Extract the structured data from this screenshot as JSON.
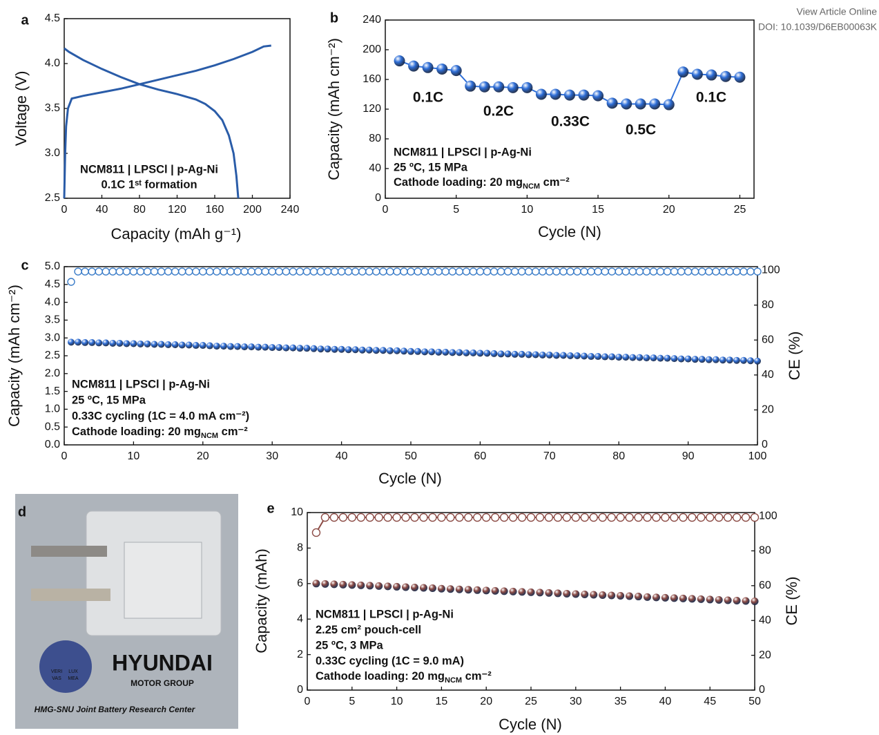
{
  "header": {
    "line1": "View Article Online",
    "line2": "DOI: 10.1039/D6EB00063K"
  },
  "photo": {
    "panel": "d",
    "logo_title": "HYUNDAI",
    "logo_subtitle": "MOTOR GROUP",
    "caption": "HMG-SNU Joint Battery Research Center",
    "seal_text": [
      "VERI",
      "LUX",
      "VAS",
      "MEA"
    ]
  },
  "chart_data": [
    {
      "panel": "a",
      "type": "line",
      "x_label": "Capacity (mAh g⁻¹)",
      "y_label": "Voltage (V)",
      "xlim": [
        0,
        240
      ],
      "xticks": [
        0,
        40,
        80,
        120,
        160,
        200,
        240
      ],
      "ylim": [
        2.5,
        4.5
      ],
      "yticks": [
        2.5,
        {
          "value": 3,
          "label": "3.0"
        },
        3.5,
        {
          "value": 4,
          "label": "4.0"
        },
        4.5
      ],
      "notes": [
        "NCM811 | LPSCl | p-Ag-Ni",
        "0.1C 1ˢᵗ formation"
      ],
      "series": [
        {
          "color": "#2a5ca8",
          "x": [
            0,
            1,
            2,
            4,
            8,
            20,
            40,
            60,
            80,
            100,
            120,
            140,
            160,
            180,
            200,
            212,
            220
          ],
          "values": [
            2.5,
            3.0,
            3.3,
            3.5,
            3.61,
            3.64,
            3.68,
            3.72,
            3.77,
            3.82,
            3.87,
            3.92,
            3.98,
            4.05,
            4.13,
            4.19,
            4.2
          ]
        },
        {
          "color": "#2a5ca8",
          "x": [
            0,
            5,
            20,
            40,
            60,
            80,
            100,
            120,
            140,
            150,
            160,
            168,
            175,
            180,
            183,
            185
          ],
          "values": [
            4.17,
            4.13,
            4.04,
            3.94,
            3.85,
            3.77,
            3.71,
            3.66,
            3.6,
            3.55,
            3.47,
            3.37,
            3.2,
            3.0,
            2.75,
            2.5
          ]
        }
      ]
    },
    {
      "panel": "b",
      "type": "scatter",
      "x_label": "Cycle (N)",
      "y_label": "Capacity (mAh cm⁻²)",
      "xlim": [
        0,
        26
      ],
      "xticks": [
        0,
        5,
        10,
        15,
        20,
        25
      ],
      "ylim": [
        0,
        240
      ],
      "yticks": [
        0,
        40,
        80,
        120,
        160,
        200,
        240
      ],
      "rates": [
        "0.1C",
        "0.2C",
        "0.33C",
        "0.5C",
        "0.1C"
      ],
      "notes": [
        "NCM811 | LPSCl | p-Ag-Ni",
        "25 ºC, 15 MPa",
        {
          "text": "Cathode loading: 20 mg",
          "sub": "NCM",
          "tail": " cm⁻²"
        }
      ],
      "x": [
        1,
        2,
        3,
        4,
        5,
        6,
        7,
        8,
        9,
        10,
        11,
        12,
        13,
        14,
        15,
        16,
        17,
        18,
        19,
        20,
        21,
        22,
        23,
        24,
        25
      ],
      "series": [
        {
          "color": "#2f6fd8",
          "marker": "ball",
          "connect": true,
          "values": [
            185,
            178,
            176,
            174,
            172,
            151,
            150,
            150,
            149,
            149,
            140,
            140,
            139,
            139,
            138,
            128,
            127,
            127,
            127,
            126,
            170,
            167,
            166,
            164,
            163
          ]
        }
      ]
    },
    {
      "panel": "c",
      "type": "scatter",
      "x_label": "Cycle (N)",
      "y_label": "Capacity (mAh cm⁻²)",
      "y2_label": "CE (%)",
      "xlim": [
        0,
        100
      ],
      "xticks": [
        0,
        10,
        20,
        30,
        40,
        50,
        60,
        70,
        80,
        90,
        100
      ],
      "ylim": [
        0,
        5
      ],
      "yticks": [
        {
          "value": 0,
          "label": "0.0"
        },
        0.5,
        {
          "value": 1,
          "label": "1.0"
        },
        1.5,
        {
          "value": 2,
          "label": "2.0"
        },
        2.5,
        {
          "value": 3,
          "label": "3.0"
        },
        3.5,
        {
          "value": 4,
          "label": "4.0"
        },
        4.5,
        {
          "value": 5,
          "label": "5.0"
        }
      ],
      "y2lim": [
        0,
        102
      ],
      "y2ticks": [
        0,
        20,
        40,
        60,
        80,
        100
      ],
      "notes": [
        "NCM811 | LPSCl | p-Ag-Ni",
        "25 ºC, 15 MPa",
        "0.33C cycling (1C = 4.0 mA cm⁻²)",
        {
          "text": "Cathode loading: 20 mg",
          "sub": "NCM",
          "tail": " cm⁻²"
        }
      ],
      "x": [
        1,
        2,
        3,
        4,
        5,
        6,
        7,
        8,
        9,
        10,
        11,
        12,
        13,
        14,
        15,
        16,
        17,
        18,
        19,
        20,
        21,
        22,
        23,
        24,
        25,
        26,
        27,
        28,
        29,
        30,
        31,
        32,
        33,
        34,
        35,
        36,
        37,
        38,
        39,
        40,
        41,
        42,
        43,
        44,
        45,
        46,
        47,
        48,
        49,
        50,
        51,
        52,
        53,
        54,
        55,
        56,
        57,
        58,
        59,
        60,
        61,
        62,
        63,
        64,
        65,
        66,
        67,
        68,
        69,
        70,
        71,
        72,
        73,
        74,
        75,
        76,
        77,
        78,
        79,
        80,
        81,
        82,
        83,
        84,
        85,
        86,
        87,
        88,
        89,
        90,
        91,
        92,
        93,
        94,
        95,
        96,
        97,
        98,
        99,
        100
      ],
      "series": [
        {
          "color": "#2f6fd8",
          "marker": "ball",
          "values": [
            2.88,
            2.88,
            2.87,
            2.87,
            2.86,
            2.86,
            2.85,
            2.85,
            2.84,
            2.84,
            2.83,
            2.83,
            2.82,
            2.82,
            2.81,
            2.81,
            2.8,
            2.8,
            2.79,
            2.79,
            2.78,
            2.77,
            2.77,
            2.76,
            2.76,
            2.75,
            2.75,
            2.74,
            2.74,
            2.73,
            2.73,
            2.72,
            2.72,
            2.71,
            2.71,
            2.7,
            2.69,
            2.69,
            2.68,
            2.68,
            2.67,
            2.67,
            2.66,
            2.66,
            2.65,
            2.65,
            2.64,
            2.64,
            2.63,
            2.62,
            2.62,
            2.61,
            2.61,
            2.6,
            2.6,
            2.59,
            2.59,
            2.58,
            2.58,
            2.57,
            2.57,
            2.56,
            2.55,
            2.55,
            2.54,
            2.54,
            2.53,
            2.53,
            2.52,
            2.52,
            2.51,
            2.51,
            2.5,
            2.5,
            2.49,
            2.48,
            2.48,
            2.47,
            2.47,
            2.46,
            2.46,
            2.45,
            2.45,
            2.44,
            2.44,
            2.43,
            2.43,
            2.42,
            2.41,
            2.41,
            2.4,
            2.4,
            2.39,
            2.39,
            2.38,
            2.38,
            2.37,
            2.37,
            2.36,
            2.35
          ]
        },
        {
          "color": "#3a7cc8",
          "marker": "open",
          "axis": "y2",
          "values": [
            93.3,
            99.2,
            99.2,
            99.2,
            99.2,
            99.2,
            99.2,
            99.2,
            99.2,
            99.2,
            99.2,
            99.2,
            99.2,
            99.2,
            99.2,
            99.2,
            99.2,
            99.2,
            99.2,
            99.2,
            99.2,
            99.2,
            99.2,
            99.2,
            99.2,
            99.2,
            99.2,
            99.2,
            99.2,
            99.2,
            99.2,
            99.2,
            99.2,
            99.2,
            99.2,
            99.2,
            99.2,
            99.2,
            99.2,
            99.2,
            99.2,
            99.2,
            99.2,
            99.2,
            99.2,
            99.2,
            99.2,
            99.2,
            99.2,
            99.2,
            99.2,
            99.2,
            99.2,
            99.2,
            99.2,
            99.2,
            99.2,
            99.2,
            99.2,
            99.2,
            99.2,
            99.2,
            99.2,
            99.2,
            99.2,
            99.2,
            99.2,
            99.2,
            99.2,
            99.2,
            99.2,
            99.2,
            99.2,
            99.2,
            99.2,
            99.2,
            99.2,
            99.2,
            99.2,
            99.2,
            99.2,
            99.2,
            99.2,
            99.2,
            99.2,
            99.2,
            99.2,
            99.2,
            99.2,
            99.2,
            99.2,
            99.2,
            99.2,
            99.2,
            99.2,
            99.2,
            99.2,
            99.2,
            99.2,
            99.2
          ]
        }
      ]
    },
    {
      "panel": "e",
      "type": "scatter",
      "x_label": "Cycle (N)",
      "y_label": "Capacity (mAh)",
      "y2_label": "CE (%)",
      "xlim": [
        0,
        50
      ],
      "xticks": [
        0,
        5,
        10,
        15,
        20,
        25,
        30,
        35,
        40,
        45,
        50
      ],
      "ylim": [
        0,
        10
      ],
      "yticks": [
        0,
        2,
        4,
        6,
        8,
        10
      ],
      "y2lim": [
        0,
        102
      ],
      "y2ticks": [
        0,
        20,
        40,
        60,
        80,
        100
      ],
      "notes": [
        "NCM811 | LPSCl | p-Ag-Ni",
        "2.25 cm² pouch-cell",
        "25 ºC, 3 MPa",
        "0.33C cycling (1C = 9.0 mA)",
        {
          "text": "Cathode loading: 20 mg",
          "sub": "NCM",
          "tail": " cm⁻²"
        }
      ],
      "x": [
        1,
        2,
        3,
        4,
        5,
        6,
        7,
        8,
        9,
        10,
        11,
        12,
        13,
        14,
        15,
        16,
        17,
        18,
        19,
        20,
        21,
        22,
        23,
        24,
        25,
        26,
        27,
        28,
        29,
        30,
        31,
        32,
        33,
        34,
        35,
        36,
        37,
        38,
        39,
        40,
        41,
        42,
        43,
        44,
        45,
        46,
        47,
        48,
        49,
        50
      ],
      "series": [
        {
          "color": "#8c4b45",
          "marker": "ball",
          "values": [
            6.0,
            5.98,
            5.96,
            5.94,
            5.92,
            5.9,
            5.88,
            5.86,
            5.84,
            5.82,
            5.8,
            5.78,
            5.76,
            5.74,
            5.71,
            5.69,
            5.67,
            5.65,
            5.63,
            5.61,
            5.59,
            5.57,
            5.55,
            5.53,
            5.51,
            5.49,
            5.47,
            5.45,
            5.43,
            5.41,
            5.39,
            5.37,
            5.35,
            5.33,
            5.31,
            5.29,
            5.27,
            5.24,
            5.22,
            5.2,
            5.18,
            5.16,
            5.14,
            5.12,
            5.1,
            5.08,
            5.06,
            5.04,
            5.02,
            5.0
          ]
        },
        {
          "color": "#8c4b45",
          "marker": "open",
          "axis": "y2",
          "connect": true,
          "values": [
            90.5,
            99.2,
            99.2,
            99.2,
            99.2,
            99.2,
            99.2,
            99.2,
            99.2,
            99.2,
            99.2,
            99.2,
            99.2,
            99.2,
            99.2,
            99.2,
            99.2,
            99.2,
            99.2,
            99.2,
            99.2,
            99.2,
            99.2,
            99.2,
            99.2,
            99.2,
            99.2,
            99.2,
            99.2,
            99.2,
            99.2,
            99.2,
            99.2,
            99.2,
            99.2,
            99.2,
            99.2,
            99.2,
            99.2,
            99.2,
            99.2,
            99.2,
            99.2,
            99.2,
            99.2,
            99.2,
            99.2,
            99.2,
            99.2,
            99.2
          ]
        }
      ]
    }
  ]
}
